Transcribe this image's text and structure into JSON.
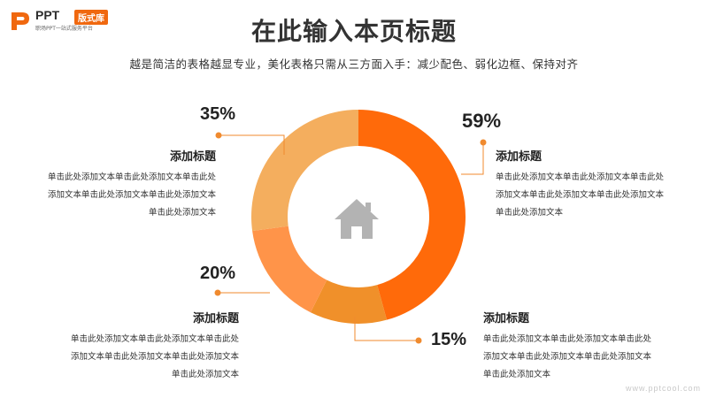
{
  "logo": {
    "brand": "PPT",
    "tag": "版式库",
    "subtitle": "职场PPT一站式服务平台"
  },
  "header": {
    "title": "在此输入本页标题",
    "subtitle": "越是简洁的表格越显专业，美化表格只需从三方面入手：减少配色、弱化边框、保持对齐"
  },
  "colors": {
    "s59": "#ff6a0a",
    "s15": "#f0902a",
    "s20": "#ff9449",
    "s35": "#f4ae5e",
    "icon": "#b3b3b3",
    "line": "#f08a2e"
  },
  "center_icon": "home-icon",
  "chart_data": {
    "type": "donut",
    "slices": [
      {
        "label": "59%",
        "value": 59
      },
      {
        "label": "15%",
        "value": 15
      },
      {
        "label": "20%",
        "value": 20
      },
      {
        "label": "35%",
        "value": 35
      }
    ]
  },
  "blocks": {
    "top_right": {
      "title": "添加标题",
      "lines": [
        "单击此处添加文本单击此处添加文本单击此处",
        "添加文本单击此处添加文本单击此处添加文本",
        "单击此处添加文本"
      ]
    },
    "bottom_right": {
      "title": "添加标题",
      "lines": [
        "单击此处添加文本单击此处添加文本单击此处",
        "添加文本单击此处添加文本单击此处添加文本",
        "单击此处添加文本"
      ]
    },
    "top_left": {
      "title": "添加标题",
      "lines": [
        "单击此处添加文本单击此处添加文本单击此处",
        "添加文本单击此处添加文本单击此处添加文本",
        "单击此处添加文本"
      ]
    },
    "bottom_left": {
      "title": "添加标题",
      "lines": [
        "单击此处添加文本单击此处添加文本单击此处",
        "添加文本单击此处添加文本单击此处添加文本",
        "单击此处添加文本"
      ]
    }
  },
  "watermark": "www.pptcool.com"
}
